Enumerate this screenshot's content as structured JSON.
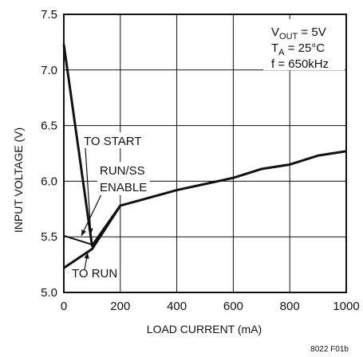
{
  "chart_data": {
    "type": "line",
    "xlabel": "LOAD CURRENT (mA)",
    "ylabel": "INPUT VOLTAGE (V)",
    "xlim": [
      0,
      1000
    ],
    "ylim": [
      5.0,
      7.5
    ],
    "x_ticks": [
      0,
      200,
      400,
      600,
      800,
      1000
    ],
    "x_tick_labels": [
      "0",
      "200",
      "400",
      "600",
      "800",
      "1000"
    ],
    "y_ticks": [
      5.0,
      5.5,
      6.0,
      6.5,
      7.0,
      7.5
    ],
    "y_tick_labels": [
      "5.0",
      "5.5",
      "6.0",
      "6.5",
      "7.0",
      "7.5"
    ],
    "grid": true,
    "series": [
      {
        "name": "TO START",
        "x": [
          0,
          100,
          200,
          400,
          600,
          700,
          800,
          900,
          1000
        ],
        "y": [
          7.23,
          5.42,
          5.78,
          5.92,
          6.03,
          6.11,
          6.15,
          6.23,
          6.27
        ]
      },
      {
        "name": "TO RUN",
        "x": [
          0,
          100,
          200
        ],
        "y": [
          5.22,
          5.39,
          5.78
        ]
      },
      {
        "name": "RUN/SS ENABLE",
        "x": [
          0,
          100
        ],
        "y": [
          5.51,
          5.43
        ]
      }
    ],
    "conditions": {
      "vout": "= 5V",
      "ta": "= 25°C",
      "freq": "f = 650kHz"
    },
    "annotations": {
      "to_start": "TO START",
      "run_ss": "RUN/SS",
      "enable": "ENABLE",
      "to_run": "TO RUN"
    },
    "figure_id": "8022 F01b"
  }
}
